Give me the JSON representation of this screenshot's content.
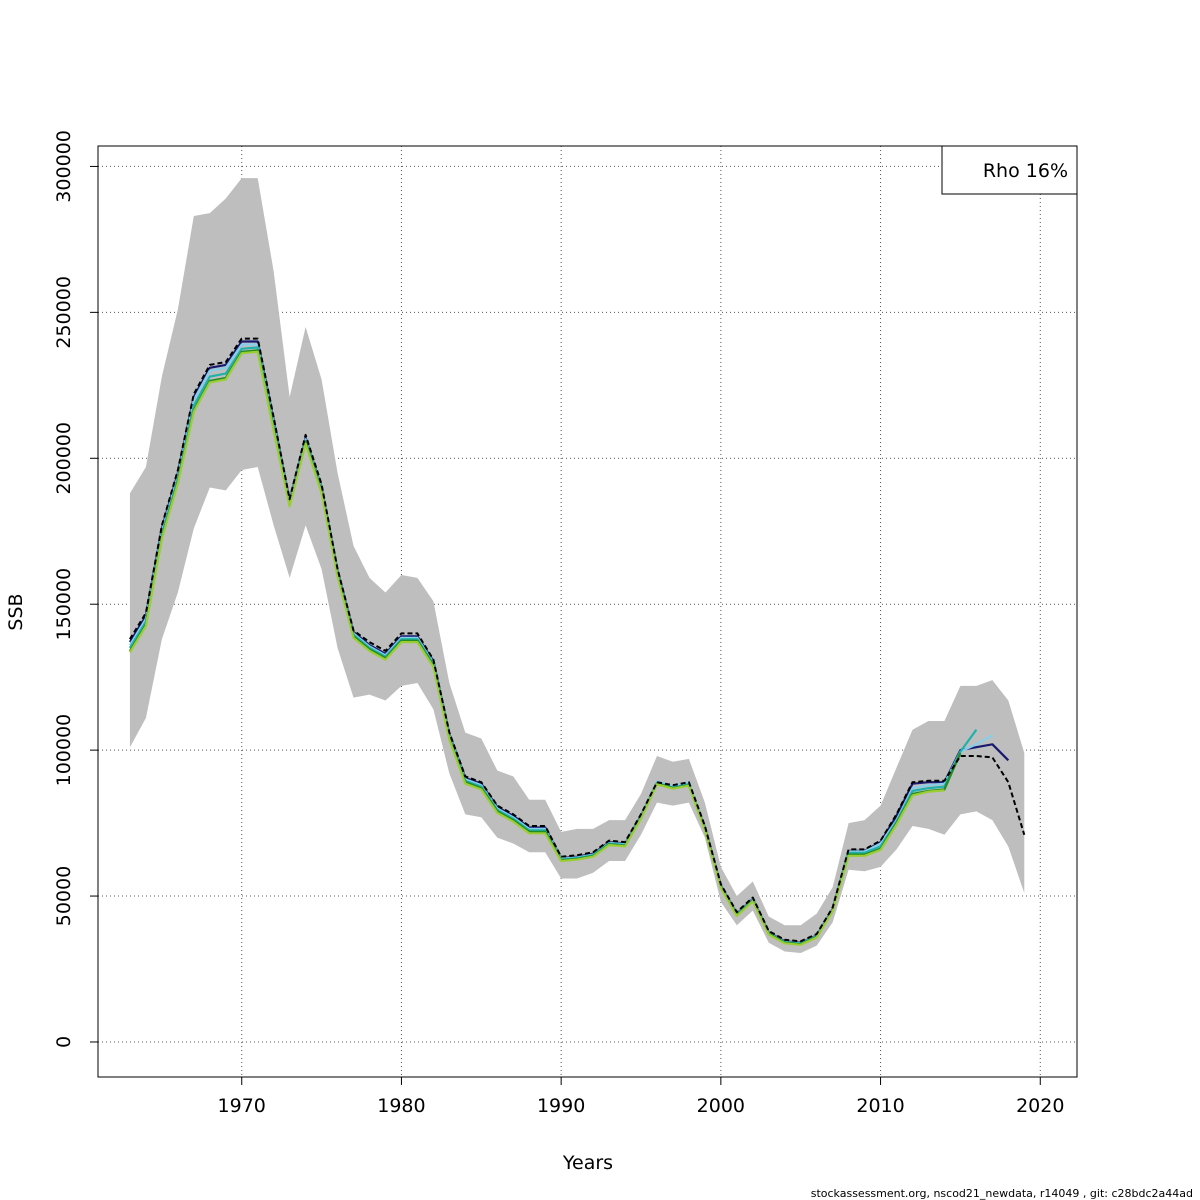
{
  "chart_data": {
    "type": "line",
    "title": "",
    "xlabel": "Years",
    "ylabel": "SSB",
    "xlim": [
      1961,
      2022.3
    ],
    "ylim": [
      -12000,
      307000
    ],
    "x_ticks": [
      1970,
      1980,
      1990,
      2000,
      2010,
      2020
    ],
    "x_tick_labels": [
      "1970",
      "1980",
      "1990",
      "2000",
      "2010",
      "2020"
    ],
    "y_ticks": [
      0,
      50000,
      100000,
      150000,
      200000,
      250000,
      300000
    ],
    "y_tick_labels": [
      "0",
      "50000",
      "100000",
      "150000",
      "200000",
      "250000",
      "300000"
    ],
    "grid": true,
    "legend": {
      "text": "Rho 16%",
      "placement": "top-right"
    },
    "footnote": "stockassessment.org, nscod21_newdata, r14049 , git: c28bdc2a44ad",
    "confidence_band": {
      "color": "#bebebe",
      "x": [
        1963,
        1964,
        1965,
        1966,
        1967,
        1968,
        1969,
        1970,
        1971,
        1972,
        1973,
        1974,
        1975,
        1976,
        1977,
        1978,
        1979,
        1980,
        1981,
        1982,
        1983,
        1984,
        1985,
        1986,
        1987,
        1988,
        1989,
        1990,
        1991,
        1992,
        1993,
        1994,
        1995,
        1996,
        1997,
        1998,
        1999,
        2000,
        2001,
        2002,
        2003,
        2004,
        2005,
        2006,
        2007,
        2008,
        2009,
        2010,
        2011,
        2012,
        2013,
        2014,
        2015,
        2016,
        2017,
        2018,
        2019
      ],
      "upper": [
        188000,
        197000,
        228000,
        251000,
        283000,
        284000,
        289000,
        296000,
        296000,
        264000,
        221000,
        245000,
        227000,
        195000,
        170000,
        159000,
        154000,
        160000,
        159000,
        151000,
        123000,
        106000,
        104000,
        93000,
        91000,
        83000,
        83000,
        72000,
        73000,
        73000,
        76000,
        76000,
        85000,
        98000,
        96000,
        97000,
        82000,
        60000,
        50000,
        55000,
        43000,
        40000,
        40000,
        44000,
        53000,
        75000,
        76000,
        81000,
        94000,
        107000,
        110000,
        110000,
        122000,
        122000,
        124000,
        117000,
        99000
      ],
      "lower": [
        101000,
        111000,
        138000,
        154000,
        176000,
        190000,
        189000,
        196000,
        197000,
        177000,
        159000,
        177000,
        162000,
        135000,
        118000,
        119000,
        117000,
        122000,
        123000,
        114000,
        92000,
        78000,
        77000,
        70000,
        68000,
        65000,
        65000,
        56000,
        56000,
        58000,
        62000,
        62000,
        71000,
        82000,
        81000,
        82000,
        70000,
        48000,
        40000,
        45000,
        34000,
        31000,
        30500,
        33000,
        41000,
        59000,
        58500,
        60000,
        66000,
        74000,
        73000,
        71000,
        78000,
        79000,
        76000,
        67000,
        51000
      ]
    },
    "series": [
      {
        "color": "#000000",
        "dashed": true,
        "x": [
          1963,
          1964,
          1965,
          1966,
          1967,
          1968,
          1969,
          1970,
          1971,
          1972,
          1973,
          1974,
          1975,
          1976,
          1977,
          1978,
          1979,
          1980,
          1981,
          1982,
          1983,
          1984,
          1985,
          1986,
          1987,
          1988,
          1989,
          1990,
          1991,
          1992,
          1993,
          1994,
          1995,
          1996,
          1997,
          1998,
          1999,
          2000,
          2001,
          2002,
          2003,
          2004,
          2005,
          2006,
          2007,
          2008,
          2009,
          2010,
          2011,
          2012,
          2013,
          2014,
          2015,
          2016,
          2017,
          2018,
          2019
        ],
        "values": [
          138000,
          147000,
          177000,
          196000,
          222000,
          232000,
          233000,
          241000,
          241000,
          214000,
          186000,
          208000,
          191000,
          162000,
          141000,
          137000,
          134000,
          140000,
          140000,
          131000,
          106000,
          91000,
          89000,
          81000,
          78000,
          74000,
          74000,
          63500,
          64000,
          65000,
          69000,
          68500,
          78000,
          89000,
          88000,
          89000,
          74000,
          54000,
          44500,
          49500,
          38000,
          35000,
          34500,
          37000,
          46000,
          66000,
          66000,
          69000,
          78000,
          89000,
          89500,
          89500,
          98000,
          98000,
          97500,
          89000,
          71000
        ]
      },
      {
        "color": "#191970",
        "dashed": false,
        "x": [
          1963,
          1964,
          1965,
          1966,
          1967,
          1968,
          1969,
          1970,
          1971,
          1972,
          1973,
          1974,
          1975,
          1976,
          1977,
          1978,
          1979,
          1980,
          1981,
          1982,
          1983,
          1984,
          1985,
          1986,
          1987,
          1988,
          1989,
          1990,
          1991,
          1992,
          1993,
          1994,
          1995,
          1996,
          1997,
          1998,
          1999,
          2000,
          2001,
          2002,
          2003,
          2004,
          2005,
          2006,
          2007,
          2008,
          2009,
          2010,
          2011,
          2012,
          2013,
          2014,
          2015,
          2016,
          2017,
          2018
        ],
        "values": [
          137000,
          146000,
          176000,
          195000,
          221000,
          231000,
          232000,
          240000,
          240000,
          213000,
          185500,
          207000,
          190000,
          161500,
          140500,
          136000,
          133000,
          139000,
          139000,
          130500,
          105500,
          90500,
          88500,
          80500,
          77500,
          73500,
          73500,
          63000,
          63500,
          64500,
          68500,
          68000,
          77500,
          89000,
          87500,
          88500,
          73500,
          53500,
          44000,
          49000,
          37500,
          34500,
          34000,
          36500,
          45500,
          65500,
          65500,
          68500,
          77500,
          88500,
          89000,
          89000,
          100000,
          101000,
          102000,
          96500
        ]
      },
      {
        "color": "#87ceeb",
        "dashed": false,
        "x": [
          1963,
          1964,
          1965,
          1966,
          1967,
          1968,
          1969,
          1970,
          1971,
          1972,
          1973,
          1974,
          1975,
          1976,
          1977,
          1978,
          1979,
          1980,
          1981,
          1982,
          1983,
          1984,
          1985,
          1986,
          1987,
          1988,
          1989,
          1990,
          1991,
          1992,
          1993,
          1994,
          1995,
          1996,
          1997,
          1998,
          1999,
          2000,
          2001,
          2002,
          2003,
          2004,
          2005,
          2006,
          2007,
          2008,
          2009,
          2010,
          2011,
          2012,
          2013,
          2014,
          2015,
          2016,
          2017
        ],
        "values": [
          136000,
          145000,
          175000,
          194000,
          220000,
          230000,
          231000,
          239000,
          239000,
          212000,
          185000,
          206500,
          189500,
          161000,
          140000,
          135500,
          132500,
          138500,
          138500,
          130000,
          105000,
          90000,
          88000,
          80000,
          77000,
          73000,
          73000,
          62800,
          63200,
          64200,
          68200,
          67800,
          77200,
          89200,
          87800,
          89000,
          73200,
          53300,
          43800,
          48800,
          37300,
          34300,
          33800,
          36300,
          45300,
          65300,
          65300,
          68000,
          76000,
          87000,
          88000,
          88500,
          99500,
          102000,
          105000
        ]
      },
      {
        "color": "#20b2aa",
        "dashed": false,
        "x": [
          1963,
          1964,
          1965,
          1966,
          1967,
          1968,
          1969,
          1970,
          1971,
          1972,
          1973,
          1974,
          1975,
          1976,
          1977,
          1978,
          1979,
          1980,
          1981,
          1982,
          1983,
          1984,
          1985,
          1986,
          1987,
          1988,
          1989,
          1990,
          1991,
          1992,
          1993,
          1994,
          1995,
          1996,
          1997,
          1998,
          1999,
          2000,
          2001,
          2002,
          2003,
          2004,
          2005,
          2006,
          2007,
          2008,
          2009,
          2010,
          2011,
          2012,
          2013,
          2014,
          2015,
          2016
        ],
        "values": [
          135000,
          144000,
          174000,
          193000,
          218000,
          228000,
          229000,
          237500,
          238000,
          211000,
          184500,
          206000,
          189000,
          160500,
          139500,
          135000,
          132000,
          138000,
          138000,
          129500,
          104500,
          89500,
          87500,
          79500,
          76500,
          72500,
          72500,
          62500,
          63000,
          64000,
          68000,
          67500,
          77000,
          88800,
          87200,
          88200,
          73000,
          53200,
          43600,
          48600,
          37200,
          34200,
          33700,
          36200,
          45200,
          64800,
          64800,
          67000,
          75500,
          86000,
          87000,
          87500,
          99500,
          107000
        ]
      },
      {
        "color": "#228b22",
        "dashed": false,
        "x": [
          1963,
          1964,
          1965,
          1966,
          1967,
          1968,
          1969,
          1970,
          1971,
          1972,
          1973,
          1974,
          1975,
          1976,
          1977,
          1978,
          1979,
          1980,
          1981,
          1982,
          1983,
          1984,
          1985,
          1986,
          1987,
          1988,
          1989,
          1990,
          1991,
          1992,
          1993,
          1994,
          1995,
          1996,
          1997,
          1998,
          1999,
          2000,
          2001,
          2002,
          2003,
          2004,
          2005,
          2006,
          2007,
          2008,
          2009,
          2010,
          2011,
          2012,
          2013,
          2014,
          2015
        ],
        "values": [
          134000,
          143000,
          173000,
          192000,
          216500,
          226500,
          227500,
          236500,
          237000,
          210000,
          184000,
          205500,
          188500,
          160000,
          139000,
          134500,
          131500,
          137500,
          137500,
          129000,
          104000,
          89000,
          87000,
          79000,
          76000,
          72000,
          72000,
          62300,
          62700,
          63700,
          67700,
          67200,
          76700,
          88500,
          87000,
          88000,
          72800,
          53000,
          43400,
          48400,
          37000,
          34000,
          33500,
          36000,
          45000,
          64200,
          64200,
          66200,
          75000,
          85000,
          86000,
          86500,
          99000
        ]
      },
      {
        "color": "#9acd32",
        "dashed": false,
        "x": [
          1963,
          1964,
          1965,
          1966,
          1967,
          1968,
          1969,
          1970,
          1971,
          1972,
          1973,
          1974,
          1975,
          1976,
          1977,
          1978,
          1979,
          1980,
          1981,
          1982,
          1983,
          1984,
          1985,
          1986,
          1987,
          1988,
          1989,
          1990,
          1991,
          1992,
          1993,
          1994,
          1995,
          1996,
          1997,
          1998,
          1999,
          2000,
          2001,
          2002,
          2003,
          2004,
          2005,
          2006,
          2007,
          2008,
          2009,
          2010,
          2011,
          2012,
          2013,
          2014
        ],
        "values": [
          133500,
          142500,
          172500,
          191500,
          216000,
          226000,
          227000,
          236000,
          236500,
          209500,
          183500,
          205000,
          188000,
          159500,
          138500,
          134000,
          131000,
          137000,
          137000,
          128500,
          103500,
          88500,
          86500,
          78500,
          75500,
          71500,
          71500,
          62000,
          62500,
          63500,
          67500,
          67000,
          76500,
          88300,
          86800,
          87800,
          72600,
          52800,
          43200,
          48200,
          36800,
          33800,
          33300,
          35800,
          44800,
          63800,
          63800,
          65800,
          74500,
          84500,
          85800,
          86200
        ]
      }
    ]
  }
}
